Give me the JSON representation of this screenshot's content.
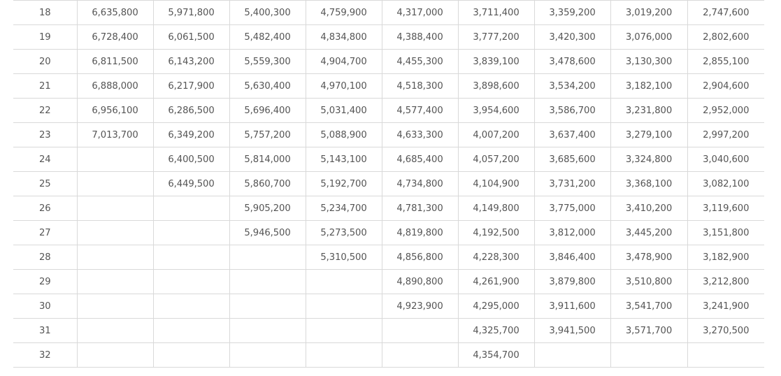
{
  "table": {
    "rows": [
      {
        "grade": "18",
        "values": [
          "6,635,800",
          "5,971,800",
          "5,400,300",
          "4,759,900",
          "4,317,000",
          "3,711,400",
          "3,359,200",
          "3,019,200",
          "2,747,600"
        ]
      },
      {
        "grade": "19",
        "values": [
          "6,728,400",
          "6,061,500",
          "5,482,400",
          "4,834,800",
          "4,388,400",
          "3,777,200",
          "3,420,300",
          "3,076,000",
          "2,802,600"
        ]
      },
      {
        "grade": "20",
        "values": [
          "6,811,500",
          "6,143,200",
          "5,559,300",
          "4,904,700",
          "4,455,300",
          "3,839,100",
          "3,478,600",
          "3,130,300",
          "2,855,100"
        ]
      },
      {
        "grade": "21",
        "values": [
          "6,888,000",
          "6,217,900",
          "5,630,400",
          "4,970,100",
          "4,518,300",
          "3,898,600",
          "3,534,200",
          "3,182,100",
          "2,904,600"
        ]
      },
      {
        "grade": "22",
        "values": [
          "6,956,100",
          "6,286,500",
          "5,696,400",
          "5,031,400",
          "4,577,400",
          "3,954,600",
          "3,586,700",
          "3,231,800",
          "2,952,000"
        ]
      },
      {
        "grade": "23",
        "values": [
          "7,013,700",
          "6,349,200",
          "5,757,200",
          "5,088,900",
          "4,633,300",
          "4,007,200",
          "3,637,400",
          "3,279,100",
          "2,997,200"
        ]
      },
      {
        "grade": "24",
        "values": [
          "",
          "6,400,500",
          "5,814,000",
          "5,143,100",
          "4,685,400",
          "4,057,200",
          "3,685,600",
          "3,324,800",
          "3,040,600"
        ]
      },
      {
        "grade": "25",
        "values": [
          "",
          "6,449,500",
          "5,860,700",
          "5,192,700",
          "4,734,800",
          "4,104,900",
          "3,731,200",
          "3,368,100",
          "3,082,100"
        ]
      },
      {
        "grade": "26",
        "values": [
          "",
          "",
          "5,905,200",
          "5,234,700",
          "4,781,300",
          "4,149,800",
          "3,775,000",
          "3,410,200",
          "3,119,600"
        ]
      },
      {
        "grade": "27",
        "values": [
          "",
          "",
          "5,946,500",
          "5,273,500",
          "4,819,800",
          "4,192,500",
          "3,812,000",
          "3,445,200",
          "3,151,800"
        ]
      },
      {
        "grade": "28",
        "values": [
          "",
          "",
          "",
          "5,310,500",
          "4,856,800",
          "4,228,300",
          "3,846,400",
          "3,478,900",
          "3,182,900"
        ]
      },
      {
        "grade": "29",
        "values": [
          "",
          "",
          "",
          "",
          "4,890,800",
          "4,261,900",
          "3,879,800",
          "3,510,800",
          "3,212,800"
        ]
      },
      {
        "grade": "30",
        "values": [
          "",
          "",
          "",
          "",
          "4,923,900",
          "4,295,000",
          "3,911,600",
          "3,541,700",
          "3,241,900"
        ]
      },
      {
        "grade": "31",
        "values": [
          "",
          "",
          "",
          "",
          "",
          "4,325,700",
          "3,941,500",
          "3,571,700",
          "3,270,500"
        ]
      },
      {
        "grade": "32",
        "values": [
          "",
          "",
          "",
          "",
          "",
          "4,354,700",
          "",
          "",
          ""
        ]
      }
    ]
  }
}
